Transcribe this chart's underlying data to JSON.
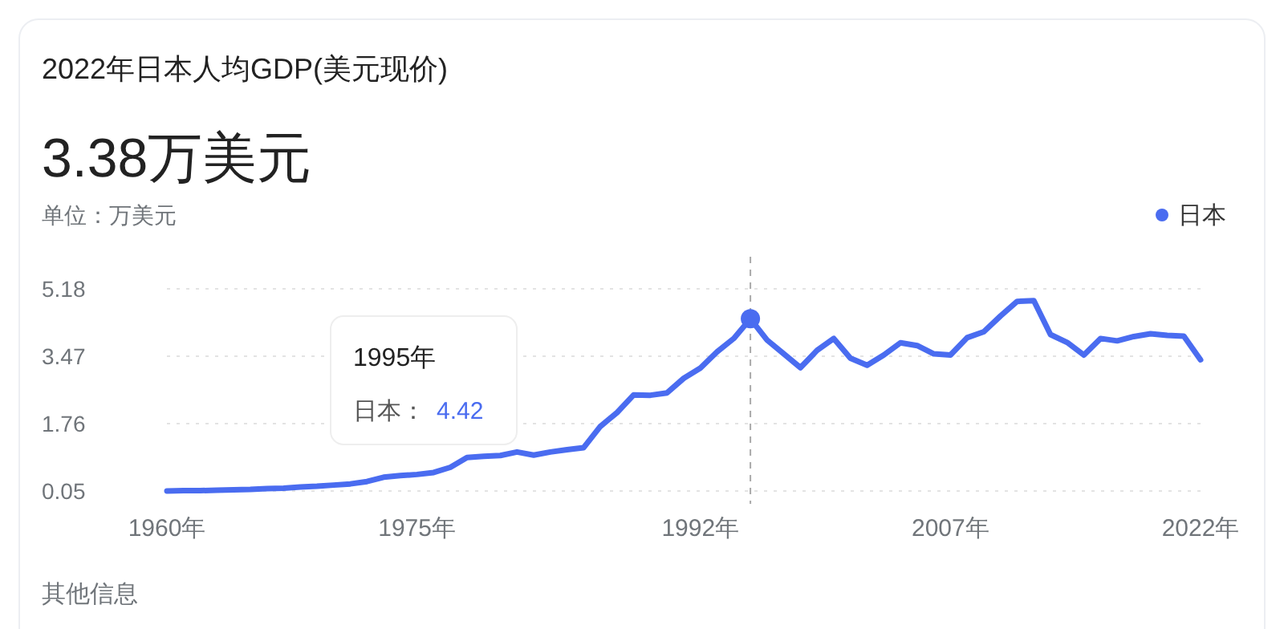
{
  "chart_data": {
    "type": "line",
    "title": "2022年日本人均GDP(美元现价)",
    "subtitle": "3.38万美元",
    "ylabel": "单位：万美元",
    "x": [
      1960,
      1961,
      1962,
      1963,
      1964,
      1965,
      1966,
      1967,
      1968,
      1969,
      1970,
      1971,
      1972,
      1973,
      1974,
      1975,
      1976,
      1977,
      1978,
      1979,
      1980,
      1981,
      1982,
      1983,
      1984,
      1985,
      1986,
      1987,
      1988,
      1989,
      1990,
      1991,
      1992,
      1993,
      1994,
      1995,
      1996,
      1997,
      1998,
      1999,
      2000,
      2001,
      2002,
      2003,
      2004,
      2005,
      2006,
      2007,
      2008,
      2009,
      2010,
      2011,
      2012,
      2013,
      2014,
      2015,
      2016,
      2017,
      2018,
      2019,
      2020,
      2021,
      2022
    ],
    "series": [
      {
        "name": "日本",
        "color": "#4a6cf0",
        "values": [
          0.05,
          0.06,
          0.06,
          0.07,
          0.08,
          0.09,
          0.11,
          0.12,
          0.15,
          0.17,
          0.2,
          0.23,
          0.29,
          0.4,
          0.44,
          0.47,
          0.52,
          0.65,
          0.9,
          0.93,
          0.95,
          1.04,
          0.96,
          1.04,
          1.1,
          1.15,
          1.69,
          2.04,
          2.49,
          2.48,
          2.54,
          2.91,
          3.17,
          3.58,
          3.92,
          4.42,
          3.88,
          3.53,
          3.18,
          3.62,
          3.92,
          3.42,
          3.24,
          3.5,
          3.81,
          3.74,
          3.53,
          3.5,
          3.94,
          4.09,
          4.49,
          4.86,
          4.88,
          4.02,
          3.82,
          3.5,
          3.92,
          3.86,
          3.97,
          4.04,
          4.0,
          3.98,
          3.38
        ]
      }
    ],
    "xlim": [
      1960,
      2022
    ],
    "xticks": [
      {
        "value": 1960,
        "label": "1960年"
      },
      {
        "value": 1975,
        "label": "1975年"
      },
      {
        "value": 1992,
        "label": "1992年"
      },
      {
        "value": 2007,
        "label": "2007年"
      },
      {
        "value": 2022,
        "label": "2022年"
      }
    ],
    "ylim": [
      0.05,
      5.18
    ],
    "yticks": [
      0.05,
      1.76,
      3.47,
      5.18
    ],
    "grid": "y",
    "legend": "top right",
    "marker": "none",
    "line_style": "solid",
    "ref_lines": [
      {
        "axis": "x",
        "value": 1995,
        "line_style": "dashed",
        "color": "#aaaaaa"
      }
    ],
    "annotations": [
      "1995年",
      "日本：",
      "4.42",
      "其他信息"
    ]
  }
}
